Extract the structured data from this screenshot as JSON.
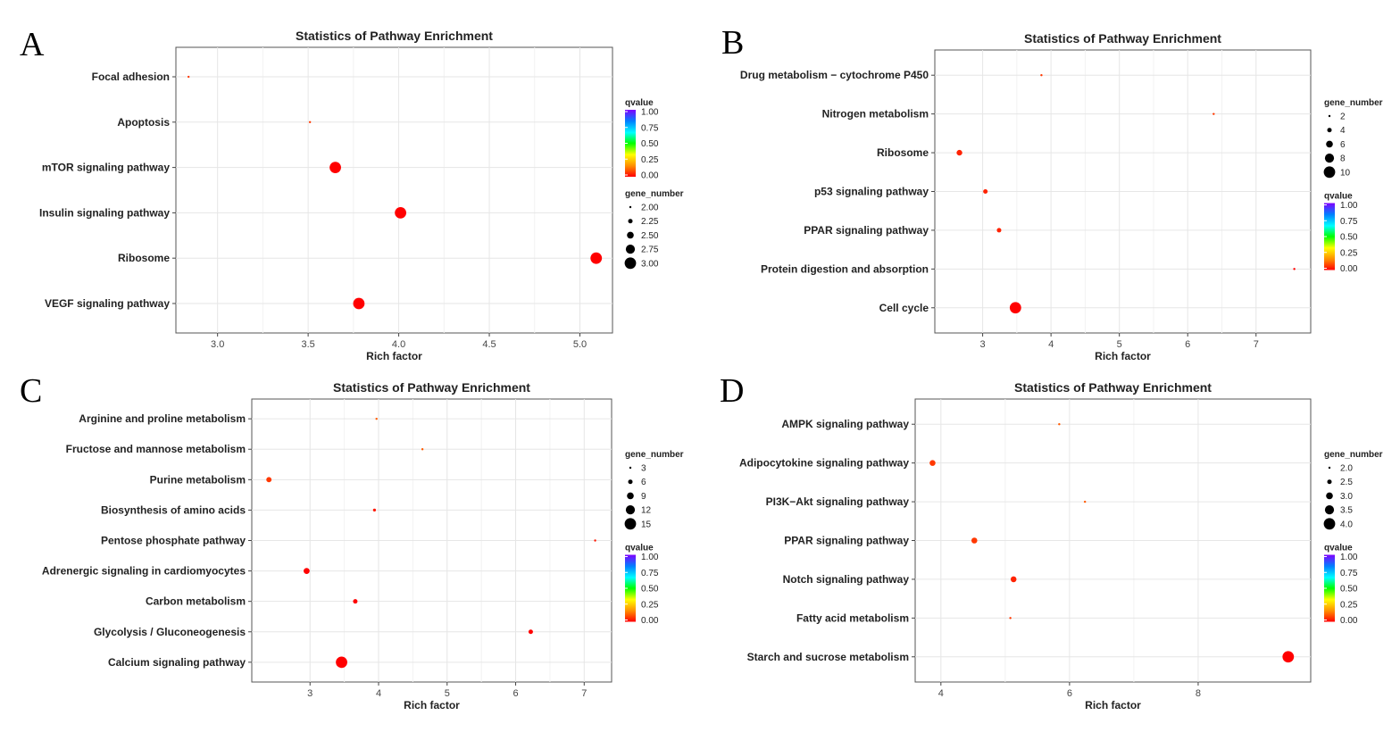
{
  "colors": {
    "qvalue_scale": [
      "#ff0000",
      "#ff8c00",
      "#ffff00",
      "#00ff00",
      "#00ffff",
      "#0080ff",
      "#8000ff"
    ],
    "panel_background": "#ffffff",
    "grid": "#ebebeb"
  },
  "chart_data": [
    {
      "panel": "A",
      "type": "scatter",
      "title": "Statistics of Pathway Enrichment",
      "xlabel": "Rich factor",
      "xlim": [
        2.77,
        5.18
      ],
      "xticks": [
        3.0,
        3.5,
        4.0,
        4.5,
        5.0
      ],
      "xtick_labels": [
        "3.0",
        "3.5",
        "4.0",
        "4.5",
        "5.0"
      ],
      "categories": [
        "Focal adhesion",
        "Apoptosis",
        "mTOR signaling pathway",
        "Insulin signaling pathway",
        "Ribosome",
        "VEGF signaling pathway"
      ],
      "points": [
        {
          "pathway": "Focal adhesion",
          "rich_factor": 2.84,
          "gene_number": 1,
          "qvalue": 0.05
        },
        {
          "pathway": "Apoptosis",
          "rich_factor": 3.51,
          "gene_number": 1,
          "qvalue": 0.05
        },
        {
          "pathway": "mTOR signaling pathway",
          "rich_factor": 3.65,
          "gene_number": 3,
          "qvalue": 0.0
        },
        {
          "pathway": "Insulin signaling pathway",
          "rich_factor": 4.01,
          "gene_number": 3,
          "qvalue": 0.0
        },
        {
          "pathway": "Ribosome",
          "rich_factor": 5.09,
          "gene_number": 3,
          "qvalue": 0.0
        },
        {
          "pathway": "VEGF signaling pathway",
          "rich_factor": 3.78,
          "gene_number": 3,
          "qvalue": 0.0
        }
      ],
      "legends": [
        {
          "kind": "color",
          "title": "qvalue",
          "labels": [
            "1.00",
            "0.75",
            "0.50",
            "0.25",
            "0.00"
          ]
        },
        {
          "kind": "size",
          "title": "gene_number",
          "labels": [
            "2.00",
            "2.25",
            "2.50",
            "2.75",
            "3.00"
          ],
          "values": [
            2.0,
            2.25,
            2.5,
            2.75,
            3.0
          ]
        }
      ],
      "size_range": [
        2.0,
        3.0
      ]
    },
    {
      "panel": "B",
      "type": "scatter",
      "title": "Statistics of Pathway Enrichment",
      "xlabel": "Rich factor",
      "xlim": [
        2.3,
        7.8
      ],
      "xticks": [
        3,
        4,
        5,
        6,
        7
      ],
      "xtick_labels": [
        "3",
        "4",
        "5",
        "6",
        "7"
      ],
      "categories": [
        "Drug metabolism − cytochrome P450",
        "Nitrogen metabolism",
        "Ribosome",
        "p53 signaling pathway",
        "PPAR signaling pathway",
        "Protein digestion and absorption",
        "Cell cycle"
      ],
      "points": [
        {
          "pathway": "Drug metabolism − cytochrome P450",
          "rich_factor": 3.86,
          "gene_number": 2,
          "qvalue": 0.05
        },
        {
          "pathway": "Nitrogen metabolism",
          "rich_factor": 6.38,
          "gene_number": 1,
          "qvalue": 0.05
        },
        {
          "pathway": "Ribosome",
          "rich_factor": 2.66,
          "gene_number": 5,
          "qvalue": 0.03
        },
        {
          "pathway": "p53 signaling pathway",
          "rich_factor": 3.04,
          "gene_number": 4,
          "qvalue": 0.03
        },
        {
          "pathway": "PPAR signaling pathway",
          "rich_factor": 3.24,
          "gene_number": 4,
          "qvalue": 0.03
        },
        {
          "pathway": "Protein digestion and absorption",
          "rich_factor": 7.56,
          "gene_number": 2,
          "qvalue": 0.0
        },
        {
          "pathway": "Cell cycle",
          "rich_factor": 3.48,
          "gene_number": 10,
          "qvalue": 0.0
        }
      ],
      "legends": [
        {
          "kind": "size",
          "title": "gene_number",
          "labels": [
            "2",
            "4",
            "6",
            "8",
            "10"
          ],
          "values": [
            2,
            4,
            6,
            8,
            10
          ]
        },
        {
          "kind": "color",
          "title": "qvalue",
          "labels": [
            "1.00",
            "0.75",
            "0.50",
            "0.25",
            "0.00"
          ]
        }
      ],
      "size_range": [
        2,
        10
      ]
    },
    {
      "panel": "C",
      "type": "scatter",
      "title": "Statistics of Pathway Enrichment",
      "xlabel": "Rich factor",
      "xlim": [
        2.15,
        7.4
      ],
      "xticks": [
        3,
        4,
        5,
        6,
        7
      ],
      "xtick_labels": [
        "3",
        "4",
        "5",
        "6",
        "7"
      ],
      "categories": [
        "Arginine and proline metabolism",
        "Fructose and mannose metabolism",
        "Purine metabolism",
        "Biosynthesis of amino acids",
        "Pentose phosphate pathway",
        "Adrenergic signaling in cardiomyocytes",
        "Carbon metabolism",
        "Glycolysis / Gluconeogenesis",
        "Calcium signaling pathway"
      ],
      "points": [
        {
          "pathway": "Arginine and proline metabolism",
          "rich_factor": 3.97,
          "gene_number": 2,
          "qvalue": 0.08
        },
        {
          "pathway": "Fructose and mannose metabolism",
          "rich_factor": 4.64,
          "gene_number": 2,
          "qvalue": 0.08
        },
        {
          "pathway": "Purine metabolism",
          "rich_factor": 2.4,
          "gene_number": 7,
          "qvalue": 0.05
        },
        {
          "pathway": "Biosynthesis of amino acids",
          "rich_factor": 3.94,
          "gene_number": 4,
          "qvalue": 0.02
        },
        {
          "pathway": "Pentose phosphate pathway",
          "rich_factor": 7.16,
          "gene_number": 2,
          "qvalue": 0.02
        },
        {
          "pathway": "Adrenergic signaling in cardiomyocytes",
          "rich_factor": 2.95,
          "gene_number": 8,
          "qvalue": 0.0
        },
        {
          "pathway": "Carbon metabolism",
          "rich_factor": 3.66,
          "gene_number": 6,
          "qvalue": 0.0
        },
        {
          "pathway": "Glycolysis / Gluconeogenesis",
          "rich_factor": 6.22,
          "gene_number": 6,
          "qvalue": 0.0
        },
        {
          "pathway": "Calcium signaling pathway",
          "rich_factor": 3.46,
          "gene_number": 15,
          "qvalue": 0.0
        }
      ],
      "legends": [
        {
          "kind": "size",
          "title": "gene_number",
          "labels": [
            "3",
            "6",
            "9",
            "12",
            "15"
          ],
          "values": [
            3,
            6,
            9,
            12,
            15
          ]
        },
        {
          "kind": "color",
          "title": "qvalue",
          "labels": [
            "1.00",
            "0.75",
            "0.50",
            "0.25",
            "0.00"
          ]
        }
      ],
      "size_range": [
        3,
        15
      ]
    },
    {
      "panel": "D",
      "type": "scatter",
      "title": "Statistics of Pathway Enrichment",
      "xlabel": "Rich factor",
      "xlim": [
        3.6,
        9.75
      ],
      "xticks": [
        4,
        6,
        8
      ],
      "xtick_labels": [
        "4",
        "6",
        "8"
      ],
      "categories": [
        "AMPK signaling pathway",
        "Adipocytokine signaling pathway",
        "PI3K−Akt signaling pathway",
        "PPAR signaling pathway",
        "Notch signaling pathway",
        "Fatty acid metabolism",
        "Starch and sucrose metabolism"
      ],
      "points": [
        {
          "pathway": "AMPK signaling pathway",
          "rich_factor": 5.84,
          "gene_number": 1.5,
          "qvalue": 0.08
        },
        {
          "pathway": "Adipocytokine signaling pathway",
          "rich_factor": 3.87,
          "gene_number": 2.8,
          "qvalue": 0.05
        },
        {
          "pathway": "PI3K−Akt signaling pathway",
          "rich_factor": 6.24,
          "gene_number": 1.5,
          "qvalue": 0.08
        },
        {
          "pathway": "PPAR signaling pathway",
          "rich_factor": 4.52,
          "gene_number": 2.8,
          "qvalue": 0.05
        },
        {
          "pathway": "Notch signaling pathway",
          "rich_factor": 5.13,
          "gene_number": 2.8,
          "qvalue": 0.03
        },
        {
          "pathway": "Fatty acid metabolism",
          "rich_factor": 5.08,
          "gene_number": 1.5,
          "qvalue": 0.05
        },
        {
          "pathway": "Starch and sucrose metabolism",
          "rich_factor": 9.4,
          "gene_number": 4.0,
          "qvalue": 0.0
        }
      ],
      "legends": [
        {
          "kind": "size",
          "title": "gene_number",
          "labels": [
            "2.0",
            "2.5",
            "3.0",
            "3.5",
            "4.0"
          ],
          "values": [
            2.0,
            2.5,
            3.0,
            3.5,
            4.0
          ]
        },
        {
          "kind": "color",
          "title": "qvalue",
          "labels": [
            "1.00",
            "0.75",
            "0.50",
            "0.25",
            "0.00"
          ]
        }
      ],
      "size_range": [
        2.0,
        4.0
      ]
    }
  ]
}
